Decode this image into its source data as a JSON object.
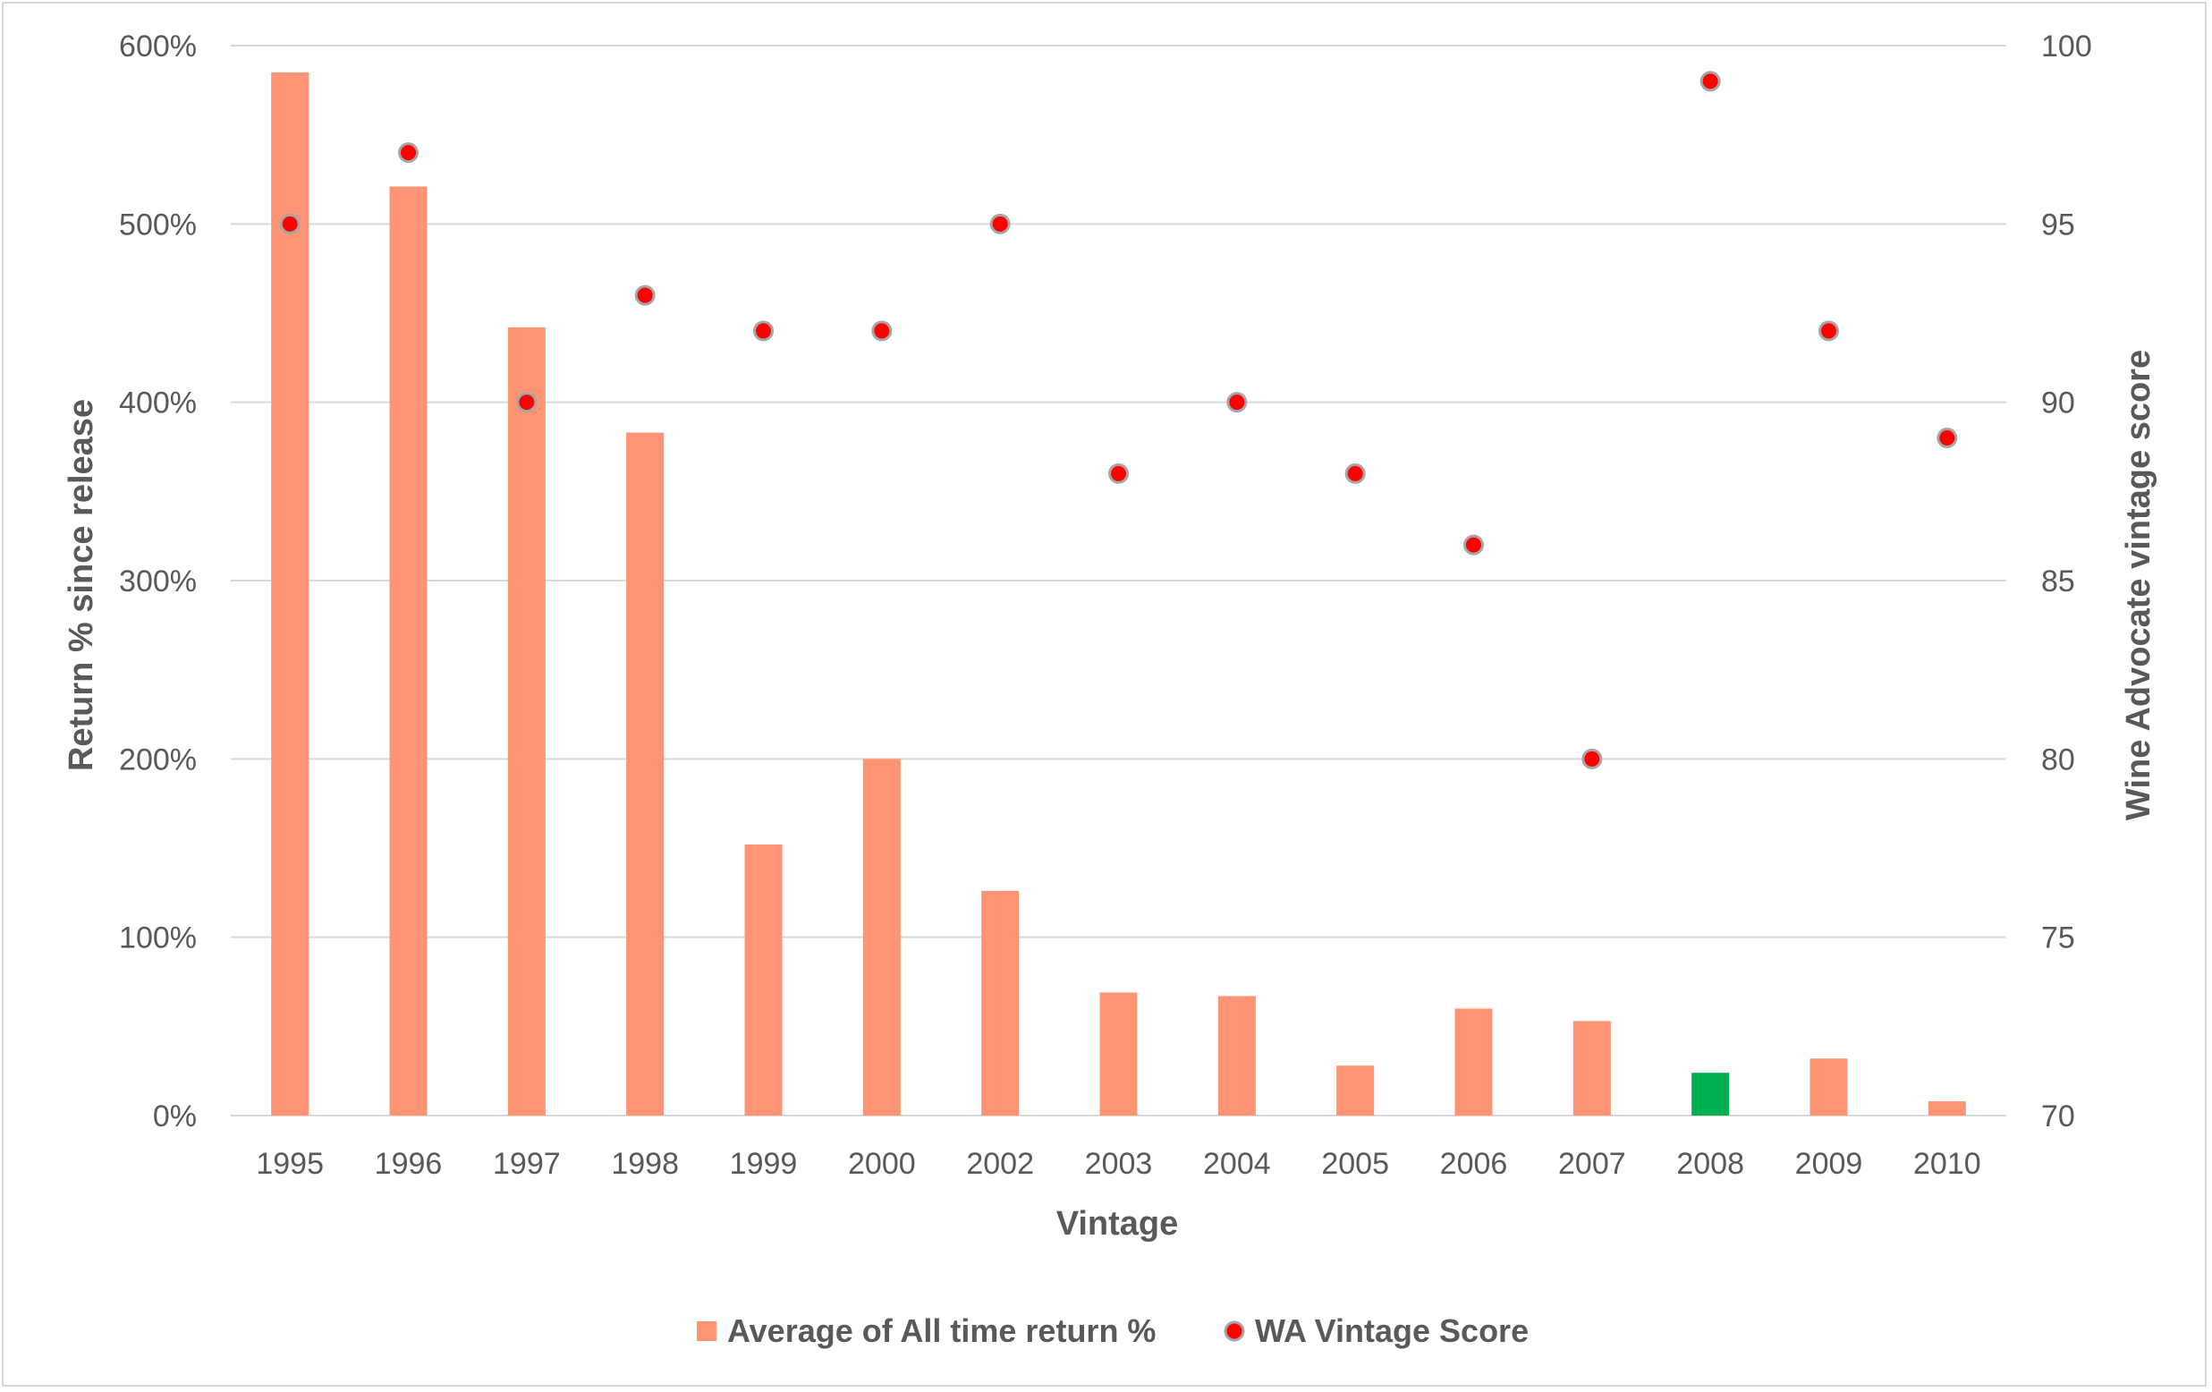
{
  "chart_data": {
    "type": "bar",
    "categories": [
      "1995",
      "1996",
      "1997",
      "1998",
      "1999",
      "2000",
      "2002",
      "2003",
      "2004",
      "2005",
      "2006",
      "2007",
      "2008",
      "2009",
      "2010"
    ],
    "series": [
      {
        "name": "Average of All time return %",
        "kind": "bar",
        "axis": "left",
        "color": "#fe9473",
        "highlight": {
          "category": "2008",
          "color": "#00b050"
        },
        "values": [
          585,
          521,
          442,
          383,
          152,
          200,
          126,
          69,
          67,
          28,
          60,
          53,
          24,
          32,
          8
        ]
      },
      {
        "name": "WA Vintage Score",
        "kind": "scatter",
        "axis": "right",
        "color": "#ff0000",
        "outline": "#a6a6a6",
        "values": [
          95,
          97,
          90,
          93,
          92,
          92,
          95,
          88,
          90,
          88,
          86,
          80,
          99,
          92,
          89
        ]
      }
    ],
    "xlabel": "Vintage",
    "ylabel": "Return % since release",
    "y2label": "Wine Advocate vintage score",
    "ylim": [
      0,
      600
    ],
    "y2lim": [
      70,
      100
    ],
    "yticks": [
      "0%",
      "100%",
      "200%",
      "300%",
      "400%",
      "500%",
      "600%"
    ],
    "y2ticks": [
      "70",
      "75",
      "80",
      "85",
      "90",
      "95",
      "100"
    ],
    "grid": true,
    "legend_position": "bottom"
  }
}
